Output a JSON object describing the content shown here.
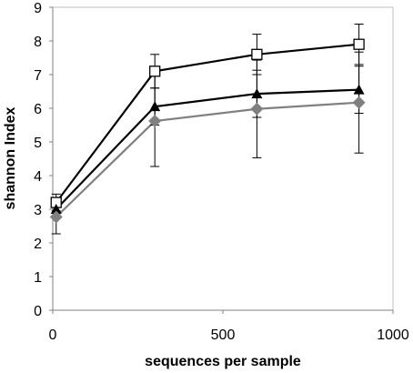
{
  "chart_data": {
    "type": "line",
    "title": "",
    "xlabel": "sequences per sample",
    "ylabel": "shannon Index",
    "xlim": [
      0,
      1000
    ],
    "ylim": [
      0,
      9
    ],
    "x_ticks": [
      0,
      500,
      1000
    ],
    "y_ticks": [
      0,
      1,
      2,
      3,
      4,
      5,
      6,
      7,
      8,
      9
    ],
    "x_tick_labels": [
      "0",
      "500",
      "1000"
    ],
    "y_tick_labels": [
      "0",
      "1",
      "2",
      "3",
      "4",
      "5",
      "6",
      "7",
      "8",
      "9"
    ],
    "grid": false,
    "legend": "none",
    "series": [
      {
        "marker": "open-square",
        "color": "#000000",
        "x": [
          10,
          300,
          600,
          900
        ],
        "y": [
          3.2,
          7.1,
          7.6,
          7.9
        ],
        "error": [
          0.25,
          0.5,
          0.6,
          0.6
        ]
      },
      {
        "marker": "triangle",
        "color": "#000000",
        "x": [
          10,
          300,
          600,
          900
        ],
        "y": [
          3.0,
          6.05,
          6.43,
          6.55
        ],
        "error": [
          0.25,
          0.55,
          0.7,
          0.7
        ]
      },
      {
        "marker": "diamond",
        "color": "#808080",
        "x": [
          10,
          300,
          600,
          900
        ],
        "y": [
          2.77,
          5.62,
          5.98,
          6.17
        ],
        "error": [
          0.5,
          1.35,
          1.45,
          1.5
        ]
      }
    ]
  }
}
